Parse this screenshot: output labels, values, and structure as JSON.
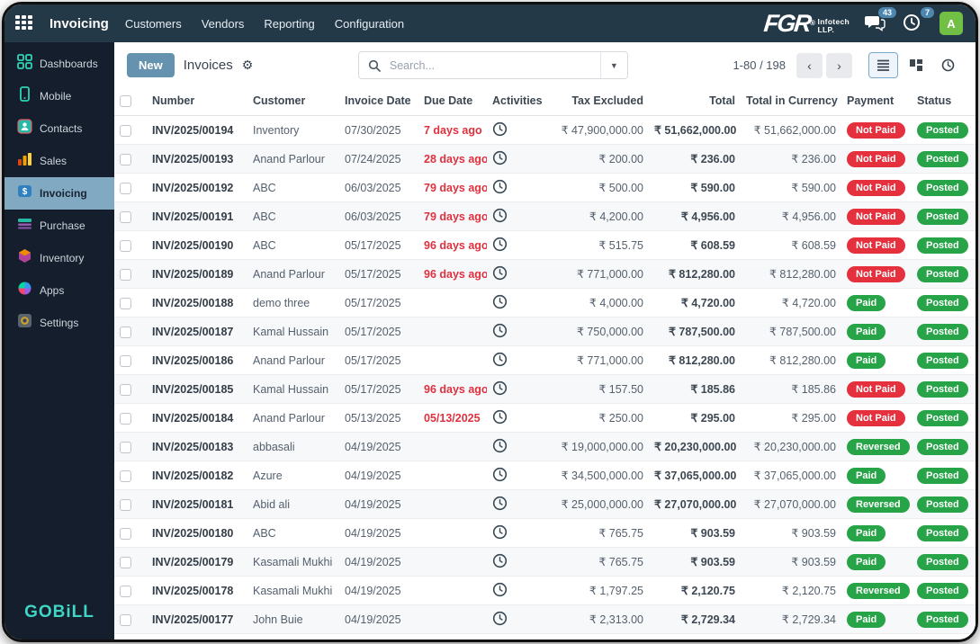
{
  "navbar": {
    "app_name": "Invoicing",
    "menus": [
      "Customers",
      "Vendors",
      "Reporting",
      "Configuration"
    ],
    "brand": {
      "name": "FGR",
      "registered": "®",
      "sub_line1": "Infotech",
      "sub_line2": "LLP."
    },
    "messages_count": "43",
    "activities_count": "7",
    "avatar_initial": "A"
  },
  "sidebar": {
    "items": [
      {
        "label": "Dashboards",
        "icon": "dashboards-icon",
        "active": false
      },
      {
        "label": "Mobile",
        "icon": "mobile-icon",
        "active": false
      },
      {
        "label": "Contacts",
        "icon": "contacts-icon",
        "active": false
      },
      {
        "label": "Sales",
        "icon": "sales-icon",
        "active": false
      },
      {
        "label": "Invoicing",
        "icon": "invoicing-icon",
        "active": true
      },
      {
        "label": "Purchase",
        "icon": "purchase-icon",
        "active": false
      },
      {
        "label": "Inventory",
        "icon": "inventory-icon",
        "active": false
      },
      {
        "label": "Apps",
        "icon": "apps-icon",
        "active": false
      },
      {
        "label": "Settings",
        "icon": "settings-icon",
        "active": false
      }
    ],
    "logo": "GOBiLL"
  },
  "control_panel": {
    "new_button": "New",
    "breadcrumb": "Invoices",
    "search_placeholder": "Search...",
    "pager": "1-80 / 198"
  },
  "table": {
    "headers": [
      "Number",
      "Customer",
      "Invoice Date",
      "Due Date",
      "Activities",
      "Tax Excluded",
      "Total",
      "Total in Currency",
      "Payment",
      "Status"
    ],
    "rows": [
      {
        "number": "INV/2025/00194",
        "customer": "Inventory",
        "invoice_date": "07/30/2025",
        "due_date": "7 days ago",
        "overdue": true,
        "tax_excluded": "₹ 47,900,000.00",
        "total": "₹ 51,662,000.00",
        "total_currency": "₹ 51,662,000.00",
        "payment": "Not Paid",
        "payment_state": "danger",
        "status": "Posted"
      },
      {
        "number": "INV/2025/00193",
        "customer": "Anand Parlour",
        "invoice_date": "07/24/2025",
        "due_date": "28 days ago",
        "overdue": true,
        "tax_excluded": "₹ 200.00",
        "total": "₹ 236.00",
        "total_currency": "₹ 236.00",
        "payment": "Not Paid",
        "payment_state": "danger",
        "status": "Posted"
      },
      {
        "number": "INV/2025/00192",
        "customer": "ABC",
        "invoice_date": "06/03/2025",
        "due_date": "79 days ago",
        "overdue": true,
        "tax_excluded": "₹ 500.00",
        "total": "₹ 590.00",
        "total_currency": "₹ 590.00",
        "payment": "Not Paid",
        "payment_state": "danger",
        "status": "Posted"
      },
      {
        "number": "INV/2025/00191",
        "customer": "ABC",
        "invoice_date": "06/03/2025",
        "due_date": "79 days ago",
        "overdue": true,
        "tax_excluded": "₹ 4,200.00",
        "total": "₹ 4,956.00",
        "total_currency": "₹ 4,956.00",
        "payment": "Not Paid",
        "payment_state": "danger",
        "status": "Posted"
      },
      {
        "number": "INV/2025/00190",
        "customer": "ABC",
        "invoice_date": "05/17/2025",
        "due_date": "96 days ago",
        "overdue": true,
        "tax_excluded": "₹ 515.75",
        "total": "₹ 608.59",
        "total_currency": "₹ 608.59",
        "payment": "Not Paid",
        "payment_state": "danger",
        "status": "Posted"
      },
      {
        "number": "INV/2025/00189",
        "customer": "Anand Parlour",
        "invoice_date": "05/17/2025",
        "due_date": "96 days ago",
        "overdue": true,
        "tax_excluded": "₹ 771,000.00",
        "total": "₹ 812,280.00",
        "total_currency": "₹ 812,280.00",
        "payment": "Not Paid",
        "payment_state": "danger",
        "status": "Posted"
      },
      {
        "number": "INV/2025/00188",
        "customer": "demo three",
        "invoice_date": "05/17/2025",
        "due_date": "",
        "overdue": false,
        "tax_excluded": "₹ 4,000.00",
        "total": "₹ 4,720.00",
        "total_currency": "₹ 4,720.00",
        "payment": "Paid",
        "payment_state": "success",
        "status": "Posted"
      },
      {
        "number": "INV/2025/00187",
        "customer": "Kamal Hussain",
        "invoice_date": "05/17/2025",
        "due_date": "",
        "overdue": false,
        "tax_excluded": "₹ 750,000.00",
        "total": "₹ 787,500.00",
        "total_currency": "₹ 787,500.00",
        "payment": "Paid",
        "payment_state": "success",
        "status": "Posted"
      },
      {
        "number": "INV/2025/00186",
        "customer": "Anand Parlour",
        "invoice_date": "05/17/2025",
        "due_date": "",
        "overdue": false,
        "tax_excluded": "₹ 771,000.00",
        "total": "₹ 812,280.00",
        "total_currency": "₹ 812,280.00",
        "payment": "Paid",
        "payment_state": "success",
        "status": "Posted"
      },
      {
        "number": "INV/2025/00185",
        "customer": "Kamal Hussain",
        "invoice_date": "05/17/2025",
        "due_date": "96 days ago",
        "overdue": true,
        "tax_excluded": "₹ 157.50",
        "total": "₹ 185.86",
        "total_currency": "₹ 185.86",
        "payment": "Not Paid",
        "payment_state": "danger",
        "status": "Posted"
      },
      {
        "number": "INV/2025/00184",
        "customer": "Anand Parlour",
        "invoice_date": "05/13/2025",
        "due_date": "05/13/2025",
        "overdue": true,
        "tax_excluded": "₹ 250.00",
        "total": "₹ 295.00",
        "total_currency": "₹ 295.00",
        "payment": "Not Paid",
        "payment_state": "danger",
        "status": "Posted"
      },
      {
        "number": "INV/2025/00183",
        "customer": "abbasali",
        "invoice_date": "04/19/2025",
        "due_date": "",
        "overdue": false,
        "tax_excluded": "₹ 19,000,000.00",
        "total": "₹ 20,230,000.00",
        "total_currency": "₹ 20,230,000.00",
        "payment": "Reversed",
        "payment_state": "success",
        "status": "Posted"
      },
      {
        "number": "INV/2025/00182",
        "customer": "Azure",
        "invoice_date": "04/19/2025",
        "due_date": "",
        "overdue": false,
        "tax_excluded": "₹ 34,500,000.00",
        "total": "₹ 37,065,000.00",
        "total_currency": "₹ 37,065,000.00",
        "payment": "Paid",
        "payment_state": "success",
        "status": "Posted"
      },
      {
        "number": "INV/2025/00181",
        "customer": "Abid ali",
        "invoice_date": "04/19/2025",
        "due_date": "",
        "overdue": false,
        "tax_excluded": "₹ 25,000,000.00",
        "total": "₹ 27,070,000.00",
        "total_currency": "₹ 27,070,000.00",
        "payment": "Reversed",
        "payment_state": "success",
        "status": "Posted"
      },
      {
        "number": "INV/2025/00180",
        "customer": "ABC",
        "invoice_date": "04/19/2025",
        "due_date": "",
        "overdue": false,
        "tax_excluded": "₹ 765.75",
        "total": "₹ 903.59",
        "total_currency": "₹ 903.59",
        "payment": "Paid",
        "payment_state": "success",
        "status": "Posted"
      },
      {
        "number": "INV/2025/00179",
        "customer": "Kasamali Mukhi",
        "invoice_date": "04/19/2025",
        "due_date": "",
        "overdue": false,
        "tax_excluded": "₹ 765.75",
        "total": "₹ 903.59",
        "total_currency": "₹ 903.59",
        "payment": "Paid",
        "payment_state": "success",
        "status": "Posted"
      },
      {
        "number": "INV/2025/00178",
        "customer": "Kasamali Mukhi",
        "invoice_date": "04/19/2025",
        "due_date": "",
        "overdue": false,
        "tax_excluded": "₹ 1,797.25",
        "total": "₹ 2,120.75",
        "total_currency": "₹ 2,120.75",
        "payment": "Reversed",
        "payment_state": "success",
        "status": "Posted"
      },
      {
        "number": "INV/2025/00177",
        "customer": "John Buie",
        "invoice_date": "04/19/2025",
        "due_date": "",
        "overdue": false,
        "tax_excluded": "₹ 2,313.00",
        "total": "₹ 2,729.34",
        "total_currency": "₹ 2,729.34",
        "payment": "Paid",
        "payment_state": "success",
        "status": "Posted"
      }
    ]
  },
  "colors": {
    "topbar_bg": "#233948",
    "sidebar_bg": "#151e2c",
    "sidebar_active_bg": "#82a9c2",
    "accent_button": "#6592ae",
    "badge_blue": "#4d87b0",
    "avatar_green": "#71bf44",
    "logo_teal": "#3fd6c5",
    "danger_red": "#e5303e",
    "success_green": "#27a348",
    "overdue_red": "#e0313e"
  }
}
